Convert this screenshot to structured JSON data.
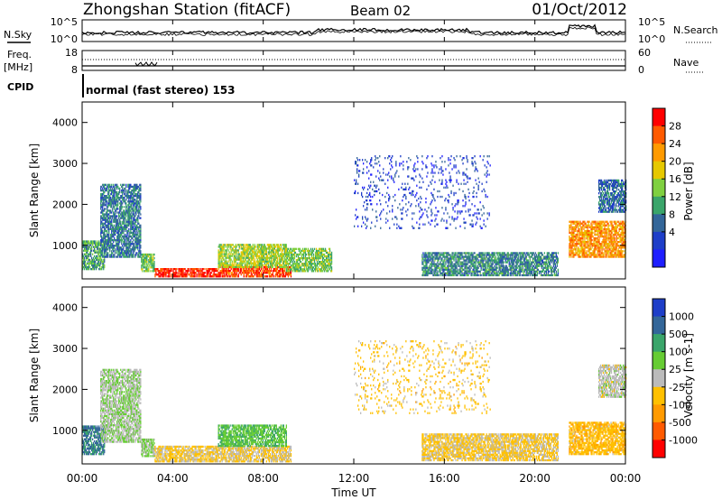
{
  "header": {
    "station": "Zhongshan Station (fitACF)",
    "beam": "Beam 02",
    "date": "01/Oct/2012"
  },
  "noise_panel": {
    "left_label": "N.Sky",
    "right_label": "N.Search",
    "left_ticks": [
      "10^5",
      "10^0"
    ],
    "right_ticks": [
      "10^5",
      "10^0"
    ]
  },
  "freq_panel": {
    "left_label_1": "Freq.",
    "left_label_2": "[MHz]",
    "right_label": "Nave",
    "left_ticks": [
      "18",
      "8"
    ],
    "right_ticks": [
      "60",
      "0"
    ]
  },
  "cpid": {
    "label": "CPID",
    "mode_text": "normal (fast stereo) 153"
  },
  "axes": {
    "ylabel": "Slant Range [km]",
    "xlabel": "Time UT",
    "yticks": [
      "4000",
      "3000",
      "2000",
      "1000"
    ],
    "xticks": [
      "00:00",
      "04:00",
      "08:00",
      "12:00",
      "16:00",
      "20:00",
      "00:00"
    ]
  },
  "power_colorbar": {
    "label": "Power [dB]",
    "ticks": [
      "28",
      "24",
      "20",
      "16",
      "12",
      "8",
      "4"
    ],
    "colors": [
      "#ff0000",
      "#ff5a00",
      "#ff9a00",
      "#e6c800",
      "#7fd040",
      "#3aa56a",
      "#336699",
      "#1e3ec8",
      "#1e1eff"
    ]
  },
  "velocity_colorbar": {
    "label": "Velocity [m s-1]",
    "ticks": [
      "1000",
      "500",
      "100",
      "25",
      "-25",
      "-100",
      "-500",
      "-1000"
    ],
    "colors": [
      "#1e3ec8",
      "#336699",
      "#3aa56a",
      "#66cc33",
      "#bbbbbb",
      "#ffc000",
      "#ff9a00",
      "#ff5a00",
      "#ff0000"
    ]
  },
  "chart_data": [
    {
      "type": "heatmap",
      "title": "Power",
      "xlabel": "Time UT",
      "ylabel": "Slant Range [km]",
      "xlim": [
        0,
        24
      ],
      "ylim": [
        180,
        4500
      ],
      "colorbar_range": [
        0,
        30
      ],
      "regions": [
        {
          "t": [
            0.0,
            1.0
          ],
          "r": [
            400,
            1100
          ],
          "value": 12
        },
        {
          "t": [
            0.8,
            2.6
          ],
          "r": [
            700,
            2500
          ],
          "value": 9
        },
        {
          "t": [
            2.6,
            3.2
          ],
          "r": [
            350,
            800
          ],
          "value": 14
        },
        {
          "t": [
            3.2,
            6.0
          ],
          "r": [
            220,
            420
          ],
          "value": 28
        },
        {
          "t": [
            6.0,
            9.2
          ],
          "r": [
            220,
            450
          ],
          "value": 26
        },
        {
          "t": [
            6.0,
            9.0
          ],
          "r": [
            450,
            1000
          ],
          "value": 16
        },
        {
          "t": [
            9.0,
            11.0
          ],
          "r": [
            350,
            900
          ],
          "value": 14
        },
        {
          "t": [
            12.0,
            18.0
          ],
          "r": [
            1400,
            3200
          ],
          "value": 5
        },
        {
          "t": [
            15.0,
            21.0
          ],
          "r": [
            250,
            800
          ],
          "value": 10
        },
        {
          "t": [
            21.5,
            24.0
          ],
          "r": [
            700,
            1600
          ],
          "value": 22
        },
        {
          "t": [
            22.8,
            24.0
          ],
          "r": [
            1800,
            2600
          ],
          "value": 8
        }
      ]
    },
    {
      "type": "heatmap",
      "title": "Velocity",
      "xlabel": "Time UT",
      "ylabel": "Slant Range [km]",
      "xlim": [
        0,
        24
      ],
      "ylim": [
        180,
        4500
      ],
      "colorbar_range": [
        -1000,
        1000
      ],
      "regions": [
        {
          "t": [
            0.0,
            1.0
          ],
          "r": [
            400,
            1100
          ],
          "value": 600
        },
        {
          "t": [
            0.8,
            2.6
          ],
          "r": [
            700,
            2500
          ],
          "value": 80
        },
        {
          "t": [
            2.6,
            3.2
          ],
          "r": [
            350,
            800
          ],
          "value": 150
        },
        {
          "t": [
            3.2,
            6.0
          ],
          "r": [
            220,
            600
          ],
          "value": -150
        },
        {
          "t": [
            6.0,
            9.2
          ],
          "r": [
            220,
            600
          ],
          "value": -120
        },
        {
          "t": [
            6.0,
            9.0
          ],
          "r": [
            600,
            1100
          ],
          "value": 300
        },
        {
          "t": [
            12.0,
            18.0
          ],
          "r": [
            1400,
            3200
          ],
          "value": -200
        },
        {
          "t": [
            15.0,
            21.0
          ],
          "r": [
            250,
            900
          ],
          "value": -150
        },
        {
          "t": [
            21.5,
            24.0
          ],
          "r": [
            400,
            1200
          ],
          "value": -250
        },
        {
          "t": [
            22.8,
            24.0
          ],
          "r": [
            1800,
            2600
          ],
          "value": 0
        }
      ]
    }
  ]
}
